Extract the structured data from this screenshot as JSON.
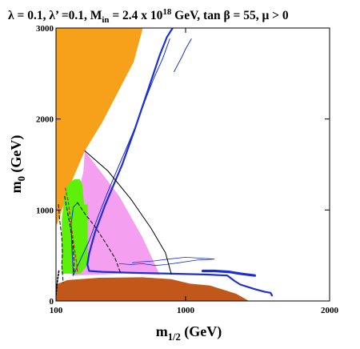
{
  "chart_data": {
    "type": "area",
    "title_parts": [
      "λ = 0.1, λ’ =0.1, M",
      "in",
      " = 2.4 x 10",
      "18",
      " GeV, tan β = 55,  μ > 0"
    ],
    "xlabel_parts": [
      "m",
      "1/2",
      " (GeV)"
    ],
    "ylabel_parts": [
      "m",
      "0",
      " (GeV)"
    ],
    "xlim": [
      100,
      2000
    ],
    "ylim": [
      0,
      3000
    ],
    "x_ticks": [
      100,
      1000,
      2000
    ],
    "y_ticks": [
      0,
      1000,
      2000,
      3000
    ],
    "grid": false,
    "colors": {
      "stau_lsp": "#c2571a",
      "no_ewsb": "#f7a11a",
      "b_to_s_gamma": "#5cf00a",
      "g_minus_2": "#f49ff0",
      "relic_density": "#1c2fd4"
    },
    "regions": [
      {
        "role": "no_ewsb",
        "points": [
          [
            100,
            3000
          ],
          [
            703,
            3000
          ],
          [
            640,
            2630
          ],
          [
            420,
            1960
          ],
          [
            300,
            1650
          ],
          [
            200,
            1280
          ],
          [
            110,
            850
          ],
          [
            100,
            830
          ]
        ]
      },
      {
        "role": "g_minus_2",
        "points": [
          [
            300,
            1650
          ],
          [
            290,
            1420
          ],
          [
            240,
            1100
          ],
          [
            210,
            820
          ],
          [
            200,
            600
          ],
          [
            210,
            280
          ],
          [
            560,
            300
          ],
          [
            820,
            290
          ],
          [
            700,
            700
          ],
          [
            540,
            1150
          ]
        ]
      },
      {
        "role": "b_to_s_gamma",
        "points": [
          [
            232,
            1340
          ],
          [
            200,
            1310
          ],
          [
            175,
            1260
          ],
          [
            160,
            1150
          ],
          [
            140,
            900
          ],
          [
            140,
            300
          ],
          [
            270,
            300
          ],
          [
            320,
            400
          ],
          [
            320,
            1060
          ],
          [
            295,
            1060
          ],
          [
            282,
            1280
          ],
          [
            265,
            1340
          ]
        ]
      },
      {
        "role": "stau_lsp",
        "points": [
          [
            100,
            0
          ],
          [
            100,
            180
          ],
          [
            180,
            230
          ],
          [
            400,
            255
          ],
          [
            700,
            260
          ],
          [
            900,
            240
          ],
          [
            1030,
            190
          ],
          [
            1170,
            170
          ],
          [
            1350,
            80
          ],
          [
            1440,
            0
          ]
        ]
      }
    ],
    "curves": [
      {
        "role": "relic_density_main",
        "points": [
          [
            910,
            3000
          ],
          [
            870,
            2900
          ],
          [
            820,
            2700
          ],
          [
            735,
            2300
          ],
          [
            650,
            1900
          ],
          [
            560,
            1500
          ],
          [
            440,
            1050
          ],
          [
            370,
            750
          ],
          [
            330,
            520
          ],
          [
            318,
            400
          ],
          [
            330,
            330
          ],
          [
            420,
            320
          ],
          [
            640,
            310
          ],
          [
            900,
            300
          ],
          [
            1150,
            290
          ],
          [
            1290,
            280
          ],
          [
            1340,
            220
          ],
          [
            1380,
            180
          ],
          [
            1480,
            130
          ],
          [
            1550,
            100
          ],
          [
            1590,
            90
          ],
          [
            1600,
            60
          ]
        ]
      },
      {
        "role": "relic_density_thin_band",
        "points": [
          [
            890,
            2880
          ],
          [
            840,
            2660
          ],
          [
            780,
            2450
          ],
          [
            730,
            2250
          ],
          [
            660,
            1950
          ],
          [
            600,
            1720
          ],
          [
            540,
            1500
          ],
          [
            460,
            1200
          ],
          [
            390,
            920
          ],
          [
            330,
            660
          ],
          [
            260,
            420
          ],
          [
            220,
            280
          ],
          [
            210,
            600
          ],
          [
            205,
            850
          ],
          [
            220,
            1030
          ],
          [
            250,
            1080
          ]
        ]
      },
      {
        "role": "relic_density_lobe",
        "points": [
          [
            630,
            420
          ],
          [
            690,
            430
          ],
          [
            780,
            440
          ],
          [
            880,
            460
          ],
          [
            1000,
            480
          ],
          [
            1110,
            470
          ],
          [
            1200,
            460
          ],
          [
            1080,
            450
          ],
          [
            950,
            420
          ],
          [
            860,
            400
          ],
          [
            790,
            390
          ],
          [
            700,
            410
          ],
          [
            620,
            400
          ],
          [
            540,
            410
          ]
        ]
      },
      {
        "role": "relic_density_high_branch",
        "points": [
          [
            1040,
            2880
          ],
          [
            1000,
            2770
          ],
          [
            980,
            2700
          ],
          [
            940,
            2580
          ],
          [
            920,
            2520
          ]
        ]
      },
      {
        "role": "relic_density_lower_strip",
        "points": [
          [
            1120,
            330
          ],
          [
            1200,
            330
          ],
          [
            1300,
            320
          ],
          [
            1380,
            300
          ],
          [
            1480,
            280
          ]
        ]
      },
      {
        "role": "boundary_solid",
        "points": [
          [
            300,
            1650
          ],
          [
            460,
            1430
          ],
          [
            620,
            1120
          ],
          [
            760,
            800
          ],
          [
            860,
            530
          ],
          [
            900,
            300
          ]
        ]
      },
      {
        "role": "dashed_far",
        "points": [
          [
            250,
            1080
          ],
          [
            300,
            960
          ],
          [
            370,
            820
          ],
          [
            440,
            650
          ],
          [
            510,
            470
          ],
          [
            550,
            300
          ]
        ]
      },
      {
        "role": "dashed_near",
        "points": [
          [
            160,
            1150
          ],
          [
            175,
            1020
          ],
          [
            195,
            850
          ],
          [
            215,
            650
          ],
          [
            225,
            450
          ],
          [
            225,
            300
          ]
        ]
      },
      {
        "role": "dashed_left",
        "points": [
          [
            117,
            1060
          ],
          [
            125,
            900
          ],
          [
            140,
            700
          ],
          [
            145,
            530
          ],
          [
            140,
            400
          ],
          [
            150,
            200
          ]
        ]
      },
      {
        "role": "dashed_red",
        "points": [
          [
            165,
            1240
          ],
          [
            185,
            1090
          ],
          [
            200,
            900
          ],
          [
            215,
            720
          ],
          [
            230,
            550
          ],
          [
            245,
            400
          ],
          [
            250,
            300
          ]
        ]
      },
      {
        "role": "dotted_left",
        "points": [
          [
            120,
            330
          ],
          [
            112,
            250
          ],
          [
            105,
            150
          ],
          [
            100,
            60
          ]
        ]
      }
    ]
  }
}
